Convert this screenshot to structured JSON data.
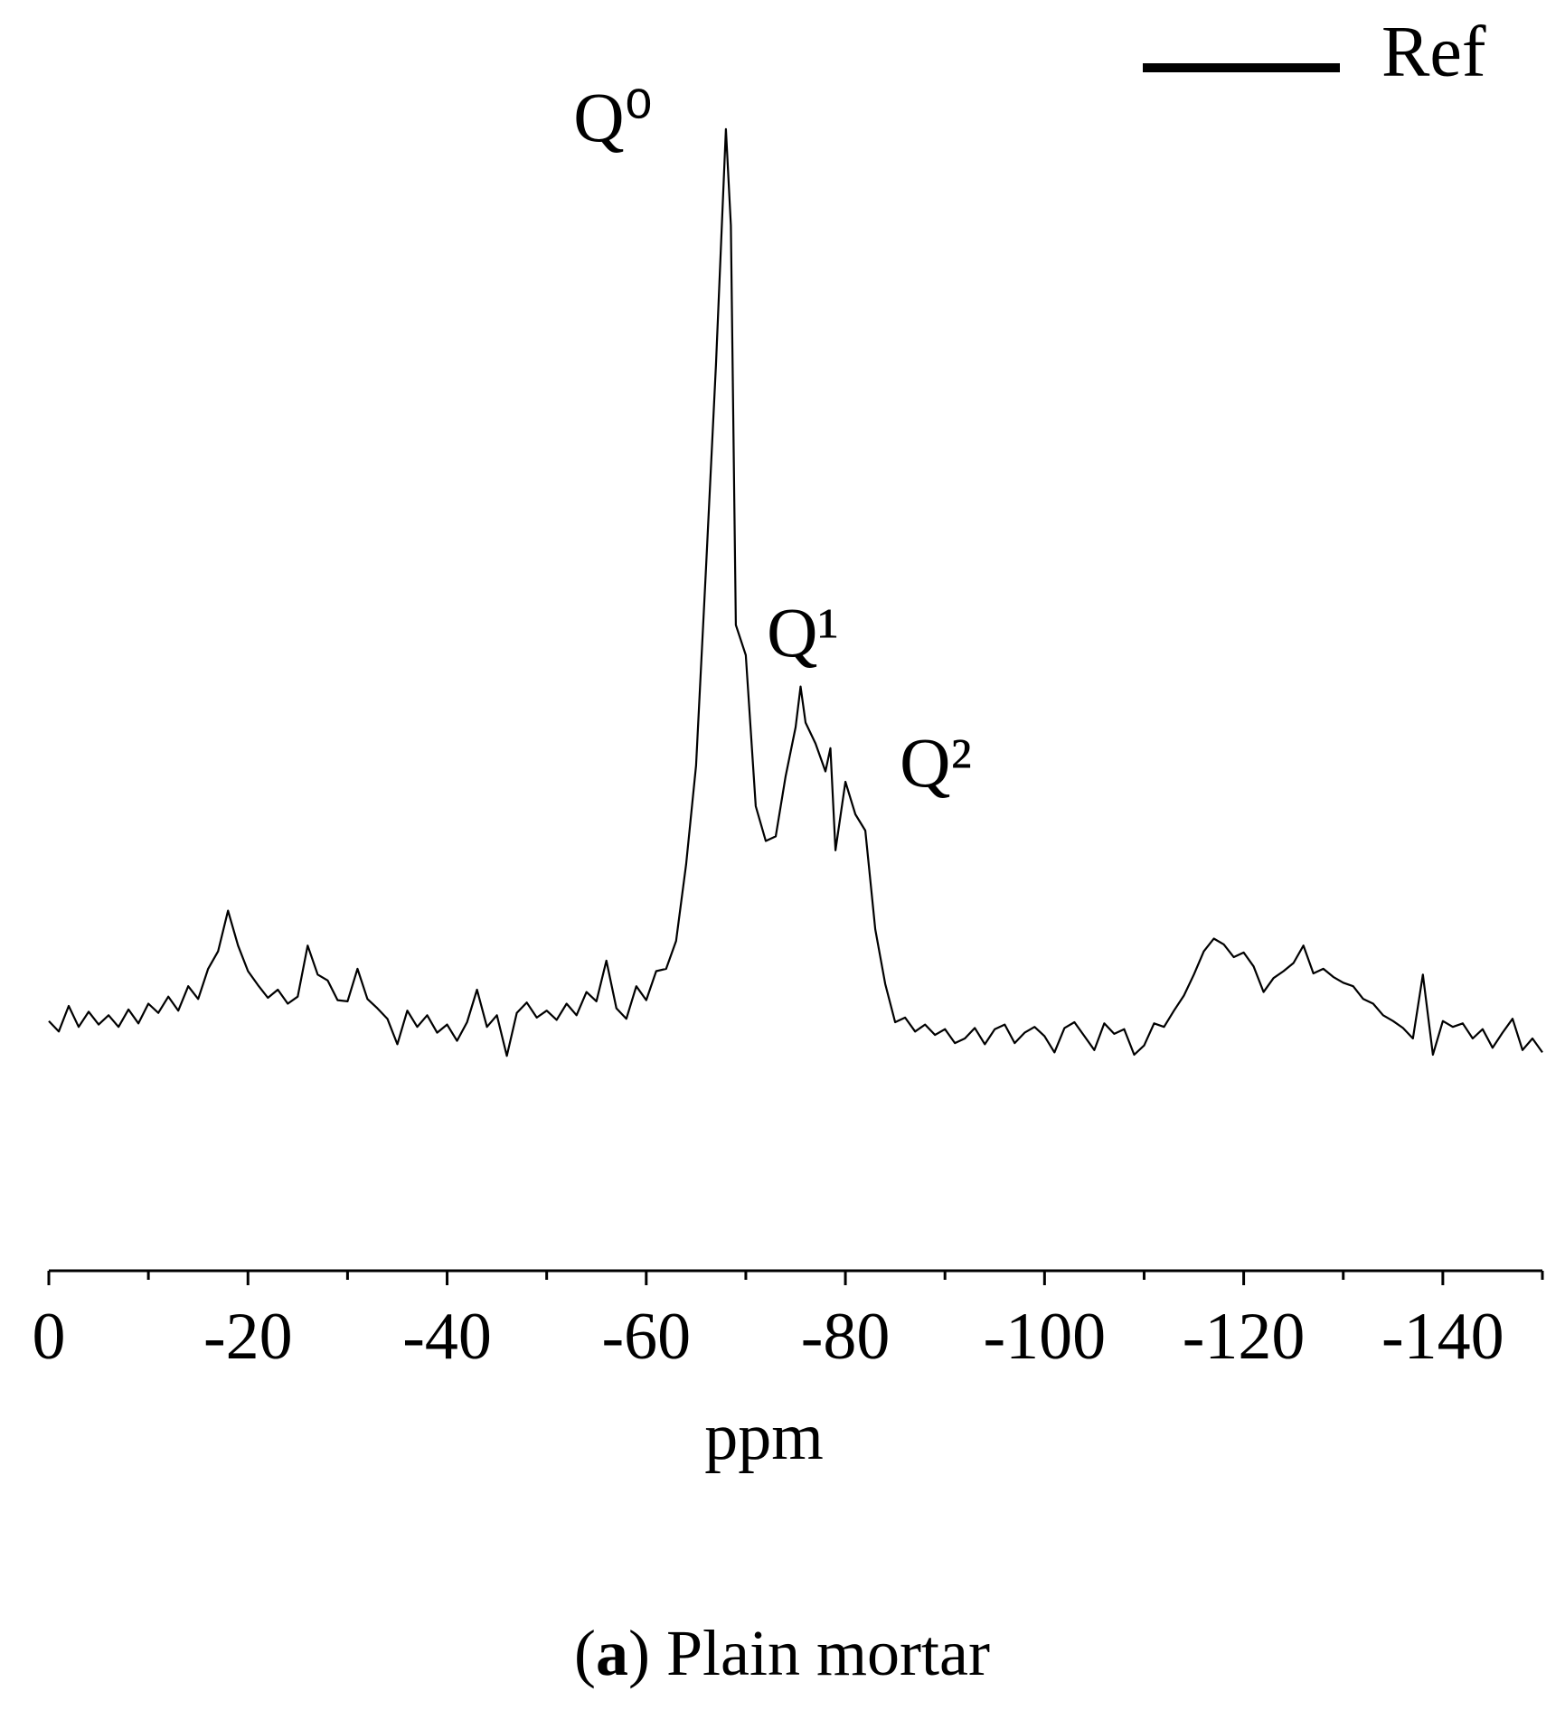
{
  "chart_data": {
    "type": "line",
    "x_label": "ppm",
    "caption": [
      "(",
      "a",
      ") Plain mortar"
    ],
    "annotations": [
      "Q⁰",
      "Q¹",
      "Q²"
    ],
    "legend": "upper right",
    "grid": false,
    "xlim": [
      0,
      -150
    ],
    "ylim": [
      0,
      100
    ],
    "xticks": [
      0,
      -20,
      -40,
      -60,
      -80,
      -100,
      -120,
      -140
    ],
    "xminorticks": [
      -10,
      -30,
      -50,
      -70,
      -90,
      -110,
      -130,
      -150
    ],
    "x": [
      0,
      -1,
      -2,
      -3,
      -4,
      -5,
      -6,
      -7,
      -8,
      -9,
      -10,
      -11,
      -12,
      -13,
      -14,
      -15,
      -16,
      -17,
      -18,
      -19,
      -20,
      -21,
      -22,
      -23,
      -24,
      -25,
      -26,
      -27,
      -28,
      -29,
      -30,
      -31,
      -32,
      -33,
      -34,
      -35,
      -36,
      -37,
      -38,
      -39,
      -40,
      -41,
      -42,
      -43,
      -44,
      -45,
      -46,
      -47,
      -48,
      -49,
      -50,
      -51,
      -52,
      -53,
      -54,
      -55,
      -56,
      -57,
      -58,
      -59,
      -60,
      -61,
      -62,
      -63,
      -64,
      -65,
      -66,
      -67,
      -68,
      -68.5,
      -69,
      -70,
      -71,
      -72,
      -73,
      -74,
      -75,
      -75.5,
      -76,
      -77,
      -78,
      -78.5,
      -79,
      -80,
      -81,
      -82,
      -83,
      -84,
      -85,
      -86,
      -87,
      -88,
      -89,
      -90,
      -91,
      -92,
      -93,
      -94,
      -95,
      -96,
      -97,
      -98,
      -99,
      -100,
      -101,
      -102,
      -103,
      -104,
      -105,
      -106,
      -107,
      -108,
      -109,
      -110,
      -111,
      -112,
      -113,
      -114,
      -115,
      -116,
      -117,
      -118,
      -119,
      -120,
      -121,
      -122,
      -123,
      -124,
      -125,
      -126,
      -127,
      -128,
      -129,
      -130,
      -131,
      -132,
      -133,
      -134,
      -135,
      -136,
      -137,
      -138,
      -139,
      -140,
      -141,
      -142,
      -143,
      -144,
      -145,
      -146,
      -147,
      -148,
      -149,
      -150
    ],
    "series": [
      {
        "name": "Ref",
        "color": "#000000",
        "values": [
          21.5,
          20.6,
          22.8,
          21.0,
          22.3,
          21.2,
          22.0,
          21.0,
          22.5,
          21.3,
          23.0,
          22.2,
          23.6,
          22.4,
          24.5,
          23.4,
          26.0,
          27.5,
          31.0,
          28.0,
          25.8,
          24.6,
          23.5,
          24.2,
          23.0,
          23.6,
          28.0,
          25.5,
          25.0,
          23.3,
          23.2,
          26.0,
          23.4,
          22.6,
          21.7,
          19.5,
          22.4,
          21.0,
          22.0,
          20.5,
          21.2,
          19.8,
          21.4,
          24.2,
          21.0,
          22.0,
          18.5,
          22.2,
          23.1,
          21.8,
          22.4,
          21.6,
          23.0,
          22.0,
          24.0,
          23.2,
          26.7,
          22.6,
          21.7,
          24.5,
          23.3,
          25.8,
          26.0,
          28.4,
          35.0,
          43.5,
          60.5,
          78.0,
          98.3,
          90.0,
          55.6,
          53.0,
          40.0,
          37.0,
          37.4,
          42.6,
          46.8,
          50.3,
          47.2,
          45.4,
          43.0,
          45.0,
          36.2,
          42.1,
          39.3,
          37.9,
          29.4,
          24.7,
          21.4,
          21.8,
          20.6,
          21.2,
          20.3,
          20.8,
          19.6,
          20.0,
          20.9,
          19.5,
          20.8,
          21.2,
          19.6,
          20.5,
          21.0,
          20.2,
          18.8,
          20.9,
          21.4,
          20.2,
          19.0,
          21.3,
          20.4,
          20.8,
          18.6,
          19.4,
          21.3,
          21.0,
          22.4,
          23.7,
          25.5,
          27.5,
          28.6,
          28.1,
          27.0,
          27.4,
          26.2,
          24.0,
          25.2,
          25.8,
          26.5,
          28.0,
          25.6,
          26.0,
          25.3,
          24.8,
          24.5,
          23.4,
          23.0,
          22.0,
          21.5,
          20.9,
          20.0,
          25.5,
          18.6,
          21.5,
          21.0,
          21.3,
          20.0,
          20.8,
          19.2,
          20.5,
          21.7,
          19.0,
          20.0,
          18.8
        ]
      }
    ]
  }
}
